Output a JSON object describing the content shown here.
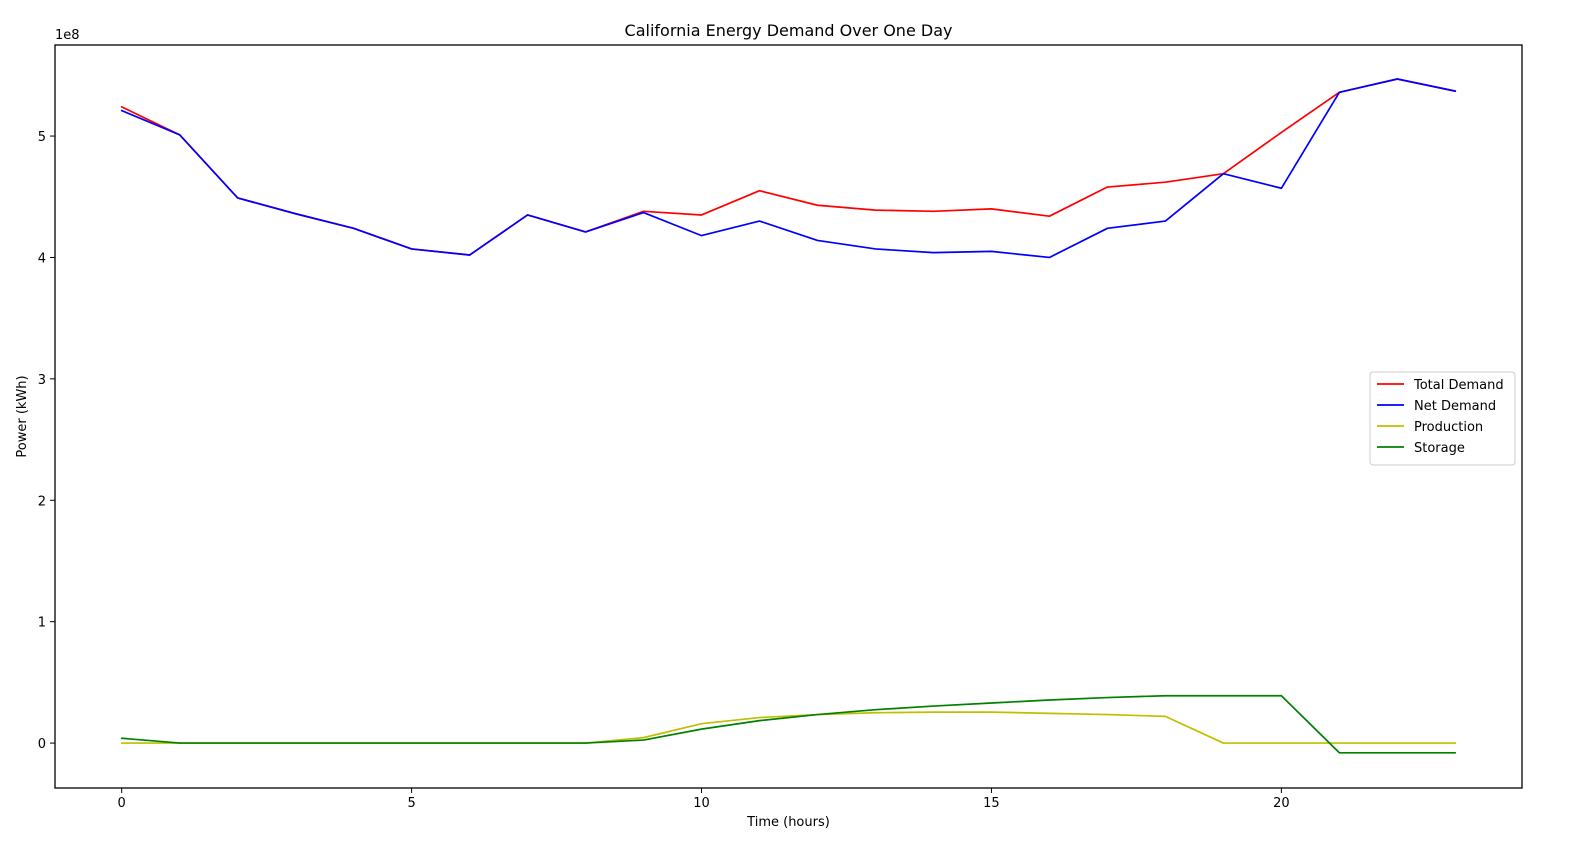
{
  "chart_data": {
    "type": "line",
    "title": "California Energy Demand Over One Day",
    "xlabel": "Time (hours)",
    "ylabel": "Power (kWh)",
    "y_offset_label": "1e8",
    "y_scale": 100000000,
    "xlim": [
      -1.15,
      24.15
    ],
    "ylim": [
      -37000000,
      575000000
    ],
    "x_ticks": [
      0,
      5,
      10,
      15,
      20
    ],
    "y_ticks": [
      0,
      100000000,
      200000000,
      300000000,
      400000000,
      500000000
    ],
    "y_tick_labels": [
      "0",
      "1",
      "2",
      "3",
      "4",
      "5"
    ],
    "grid": false,
    "legend_position": "center right",
    "x": [
      0,
      1,
      2,
      3,
      4,
      5,
      6,
      7,
      8,
      9,
      10,
      11,
      12,
      13,
      14,
      15,
      16,
      17,
      18,
      19,
      20,
      21,
      22,
      23
    ],
    "series": [
      {
        "name": "Total Demand",
        "color": "#ff0000",
        "values": [
          524000000,
          501000000,
          449000000,
          436000000,
          424000000,
          407000000,
          402000000,
          435000000,
          421000000,
          438000000,
          435000000,
          455000000,
          443000000,
          439000000,
          438000000,
          440000000,
          434000000,
          458000000,
          462000000,
          469000000,
          503000000,
          536000000,
          547000000,
          537000000
        ]
      },
      {
        "name": "Net Demand",
        "color": "#0000ff",
        "values": [
          521000000,
          501000000,
          449000000,
          436000000,
          424000000,
          407000000,
          402000000,
          435000000,
          421000000,
          437000000,
          418000000,
          430000000,
          414000000,
          407000000,
          404000000,
          405000000,
          400000000,
          424000000,
          430000000,
          469000000,
          457000000,
          536000000,
          547000000,
          537000000
        ]
      },
      {
        "name": "Production",
        "color": "#bfbf00",
        "values": [
          0,
          0,
          0,
          0,
          0,
          0,
          0,
          0,
          0,
          4500000,
          16000000,
          21000000,
          23500000,
          25000000,
          25500000,
          25500000,
          24500000,
          23500000,
          22000000,
          0,
          0,
          0,
          0,
          0
        ]
      },
      {
        "name": "Storage",
        "color": "#008000",
        "values": [
          4000000,
          0,
          0,
          0,
          0,
          0,
          0,
          0,
          0,
          2500000,
          11500000,
          18500000,
          23500000,
          27500000,
          30500000,
          33000000,
          35500000,
          37500000,
          39000000,
          39000000,
          39000000,
          -8000000,
          -8000000,
          -8000000
        ]
      }
    ]
  }
}
